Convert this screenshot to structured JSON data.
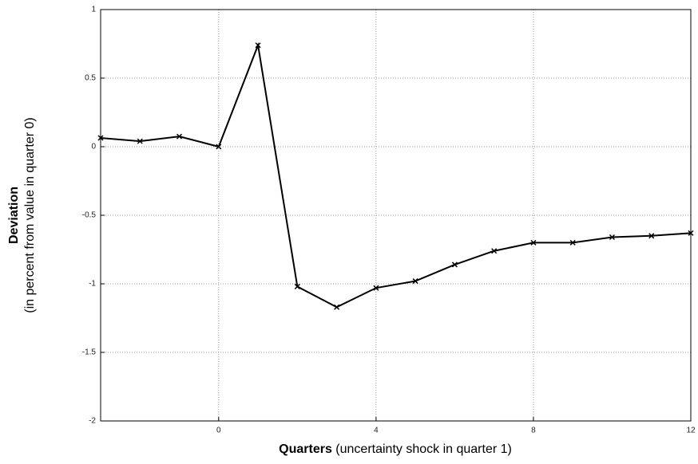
{
  "chart_data": {
    "type": "line",
    "x_label": "Quarters",
    "x_label_note": "(uncertainty shock in quarter 1)",
    "y_label": "Deviation",
    "y_label_note": "(in percent from value in quarter 0)",
    "x": [
      -3,
      -2,
      -1,
      0,
      1,
      2,
      3,
      4,
      5,
      6,
      7,
      8,
      9,
      10,
      11,
      12
    ],
    "series": [
      {
        "color": "#000000",
        "values": [
          0.064,
          0.04,
          0.075,
          0,
          0.74,
          -1.02,
          -1.17,
          -1.03,
          -0.98,
          -0.86,
          -0.76,
          -0.7,
          -0.7,
          -0.66,
          -0.65,
          -0.63
        ]
      }
    ],
    "xlim": [
      -3,
      12
    ],
    "xticks": [
      0,
      4,
      8,
      12
    ],
    "ylim": [
      -2,
      1
    ],
    "yticks": [
      -2,
      -1.5,
      -1,
      -0.5,
      0,
      0.5,
      1
    ],
    "grid": true
  }
}
